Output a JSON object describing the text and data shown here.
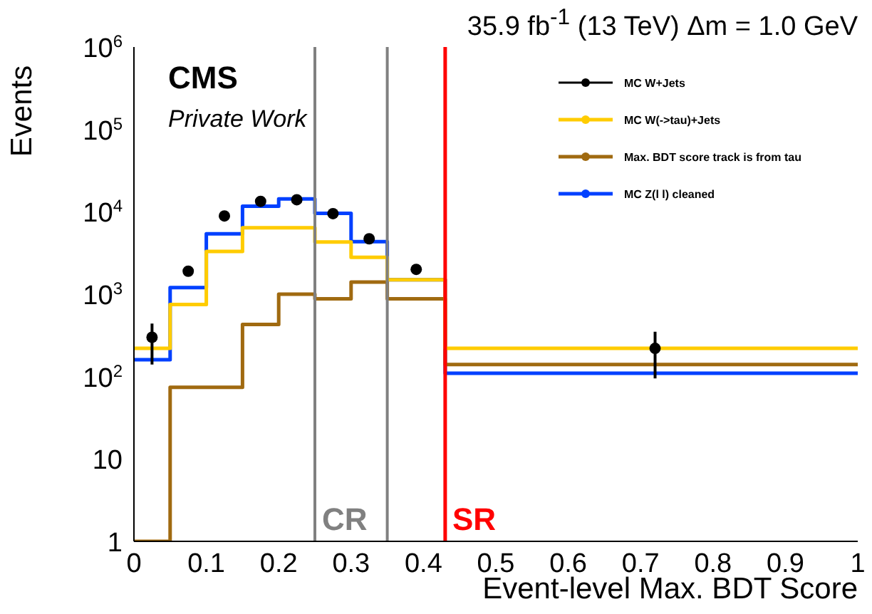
{
  "chart_data": {
    "type": "histogram",
    "title": "35.9 fb$^{-1}$ (13 TeV) Δm = 1.0 GeV",
    "annotations": [
      "CMS",
      "Private Work"
    ],
    "xlabel": "Event-level Max. BDT Score",
    "ylabel": "Events",
    "bins": [
      0,
      0.05,
      0.1,
      0.15,
      0.2,
      0.25,
      0.3,
      0.35,
      0.43,
      1
    ],
    "series": [
      {
        "name": "MC W+Jets",
        "type": "scatter",
        "color": "#000000",
        "x": [
          0.025,
          0.075,
          0.125,
          0.175,
          0.225,
          0.275,
          0.325,
          0.39,
          0.72
        ],
        "values": [
          300,
          1900,
          8900,
          13400,
          14000,
          9500,
          4700,
          2000,
          220
        ],
        "errors": [
          [
            140,
            440
          ],
          null,
          null,
          null,
          null,
          null,
          null,
          null,
          [
            95,
            350
          ]
        ]
      },
      {
        "name": "MC W(->tau)+Jets",
        "color": "#ffcc00",
        "values": [
          220,
          750,
          3300,
          6400,
          6400,
          4300,
          2800,
          1500,
          220
        ]
      },
      {
        "name": "Max. BDT score track is from tau",
        "color": "#a06a10",
        "values": [
          1,
          74,
          74,
          430,
          1000,
          880,
          1400,
          880,
          140
        ]
      },
      {
        "name": "MC Z(l l) cleaned",
        "color": "#0040ff",
        "values": [
          160,
          1200,
          5400,
          11700,
          14300,
          9600,
          4350,
          1500,
          110
        ]
      }
    ],
    "xlim": [
      0,
      1
    ],
    "xticks": [
      0,
      0.1,
      0.2,
      0.3,
      0.4,
      0.5,
      0.6,
      0.7,
      0.8,
      0.9,
      1
    ],
    "ylim": [
      1,
      1000000
    ],
    "yticks": [
      1,
      10,
      {
        "value": 100,
        "label": "10$^{2}$"
      },
      {
        "value": 1000,
        "label": "10$^{3}$"
      },
      {
        "value": 10000,
        "label": "10$^{4}$"
      },
      {
        "value": 100000,
        "label": "10$^{5}$"
      },
      {
        "value": 1000000,
        "label": "10$^{6}$"
      }
    ],
    "log": "y",
    "legend": "top right",
    "grid": false,
    "ref_lines": [
      {
        "axis": "x",
        "value": 0.25,
        "label": "CR",
        "color": "#808080"
      },
      {
        "axis": "x",
        "value": 0.35,
        "color": "#808080"
      },
      {
        "axis": "x",
        "value": 0.43,
        "label": "SR",
        "color": "#ff0000"
      }
    ]
  }
}
